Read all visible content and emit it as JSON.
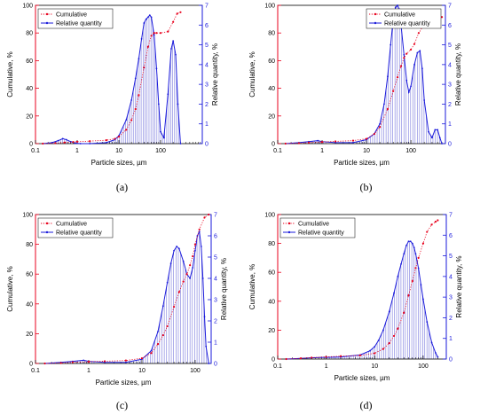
{
  "colors": {
    "cumulative": "#e8001c",
    "relative": "#1a1adb",
    "axis_left": "#e8001c",
    "axis_right": "#1a1adb",
    "bars": "#7777dd"
  },
  "chart_data": [
    {
      "type": "line",
      "caption": "(a)",
      "xlabel": "Particle sizes, µm",
      "ylabel_left": "Cumulative, %",
      "ylabel_right": "Relative quantity, %",
      "x_scale": "log",
      "xlim": [
        0.1,
        1000
      ],
      "x_ticks": [
        "0.1",
        "1",
        "10",
        "100"
      ],
      "ylim_left": [
        0,
        100
      ],
      "y_ticks_left": [
        "0",
        "20",
        "40",
        "60",
        "80",
        "100"
      ],
      "ylim_right": [
        0,
        7
      ],
      "y_ticks_right": [
        "0",
        "1",
        "2",
        "3",
        "4",
        "5",
        "6",
        "7"
      ],
      "legend": {
        "position": "top-left",
        "entries": [
          "Cumulative",
          "Relative quantity"
        ]
      },
      "series": [
        {
          "name": "Cumulative",
          "axis": "left",
          "x": [
            0.15,
            0.3,
            0.5,
            0.8,
            1,
            2,
            5,
            8,
            10,
            15,
            20,
            25,
            30,
            40,
            50,
            60,
            70,
            80,
            100,
            150,
            200,
            250,
            300
          ],
          "y": [
            0,
            0.3,
            0.8,
            1.2,
            1.4,
            1.8,
            2.5,
            3.5,
            5,
            10,
            17,
            25,
            35,
            55,
            70,
            78,
            80,
            80,
            80,
            81,
            88,
            94,
            95
          ]
        },
        {
          "name": "Relative quantity",
          "axis": "right",
          "x": [
            0.15,
            0.25,
            0.35,
            0.45,
            0.55,
            0.7,
            0.9,
            1.2,
            2,
            5,
            8,
            10,
            15,
            20,
            25,
            30,
            35,
            40,
            45,
            50,
            55,
            60,
            70,
            80,
            90,
            100,
            120,
            150,
            180,
            200,
            230,
            260,
            300
          ],
          "y": [
            0,
            0.05,
            0.15,
            0.25,
            0.2,
            0.1,
            0.02,
            0,
            0,
            0.05,
            0.2,
            0.4,
            1.2,
            2.2,
            3.3,
            4.3,
            5.3,
            6.1,
            6.3,
            6.4,
            6.5,
            6.4,
            5.5,
            3.8,
            2.0,
            0.6,
            0.3,
            2.5,
            4.8,
            5.2,
            4.5,
            2.0,
            0
          ]
        }
      ]
    },
    {
      "type": "line",
      "caption": "(b)",
      "xlabel": "Particle sizes, µm",
      "ylabel_left": "Cumulative, %",
      "ylabel_right": "Relative quantity, %",
      "x_scale": "log",
      "xlim": [
        0.1,
        600
      ],
      "x_ticks": [
        "0.1",
        "1",
        "10",
        "100"
      ],
      "ylim_left": [
        0,
        100
      ],
      "y_ticks_left": [
        "0",
        "20",
        "40",
        "60",
        "80",
        "100"
      ],
      "ylim_right": [
        0,
        7
      ],
      "y_ticks_right": [
        "0",
        "1",
        "2",
        "3",
        "4",
        "5",
        "6",
        "7"
      ],
      "legend": {
        "position": "top-right",
        "entries": [
          "Cumulative",
          "Relative quantity"
        ]
      },
      "series": [
        {
          "name": "Cumulative",
          "axis": "left",
          "x": [
            0.15,
            0.3,
            0.5,
            1,
            2,
            5,
            10,
            15,
            20,
            30,
            40,
            50,
            60,
            70,
            80,
            100,
            120,
            150,
            200,
            300,
            400,
            500
          ],
          "y": [
            0,
            0.3,
            0.7,
            1.2,
            1.6,
            2.2,
            3.5,
            7,
            12,
            25,
            38,
            48,
            56,
            62,
            65,
            68,
            72,
            80,
            86,
            90,
            91,
            91.5
          ]
        },
        {
          "name": "Relative quantity",
          "axis": "right",
          "x": [
            0.15,
            0.3,
            0.5,
            0.8,
            1,
            2,
            5,
            10,
            15,
            20,
            25,
            30,
            35,
            40,
            45,
            50,
            55,
            60,
            70,
            80,
            90,
            100,
            120,
            140,
            160,
            180,
            200,
            250,
            300,
            350,
            400,
            450,
            500
          ],
          "y": [
            0,
            0.05,
            0.1,
            0.15,
            0.1,
            0.05,
            0.05,
            0.2,
            0.5,
            1.0,
            2.0,
            3.4,
            5.0,
            6.3,
            6.9,
            7.0,
            6.8,
            6.0,
            4.5,
            3.2,
            2.6,
            2.9,
            4.0,
            4.6,
            4.7,
            3.8,
            2.2,
            0.6,
            0.3,
            0.7,
            0.7,
            0.3,
            0
          ]
        }
      ]
    },
    {
      "type": "line",
      "caption": "(c)",
      "xlabel": "Particle sizes, µm",
      "ylabel_left": "Cumulative, %",
      "ylabel_right": "Relative quantity, %",
      "x_scale": "log",
      "xlim": [
        0.1,
        200
      ],
      "x_ticks": [
        "0.1",
        "1",
        "10",
        "100"
      ],
      "ylim_left": [
        0,
        100
      ],
      "y_ticks_left": [
        "0",
        "20",
        "40",
        "60",
        "80",
        "100"
      ],
      "ylim_right": [
        0,
        7
      ],
      "y_ticks_right": [
        "0",
        "1",
        "2",
        "3",
        "4",
        "5",
        "6",
        "7"
      ],
      "legend": {
        "position": "top-left",
        "entries": [
          "Cumulative",
          "Relative quantity"
        ]
      },
      "series": [
        {
          "name": "Cumulative",
          "axis": "left",
          "x": [
            0.15,
            0.3,
            0.5,
            1,
            2,
            5,
            10,
            15,
            20,
            25,
            30,
            40,
            50,
            60,
            70,
            80,
            90,
            100,
            120,
            150,
            180
          ],
          "y": [
            0,
            0.3,
            0.8,
            1.2,
            1.5,
            2.0,
            3.5,
            7,
            13,
            19,
            25,
            38,
            48,
            55,
            60,
            66,
            72,
            80,
            90,
            98,
            100
          ]
        },
        {
          "name": "Relative quantity",
          "axis": "right",
          "x": [
            0.15,
            0.3,
            0.5,
            0.8,
            1,
            2,
            5,
            10,
            15,
            20,
            25,
            30,
            35,
            40,
            45,
            50,
            60,
            70,
            80,
            90,
            100,
            110,
            120,
            130,
            140,
            150,
            160,
            180
          ],
          "y": [
            0,
            0.05,
            0.1,
            0.15,
            0.1,
            0.05,
            0.05,
            0.2,
            0.6,
            1.5,
            2.7,
            3.8,
            4.7,
            5.3,
            5.5,
            5.4,
            4.8,
            4.2,
            4.0,
            4.5,
            5.3,
            6.0,
            6.2,
            5.5,
            4.0,
            2.2,
            0.8,
            0
          ]
        }
      ]
    },
    {
      "type": "line",
      "caption": "(d)",
      "xlabel": "Particle sizes, µm",
      "ylabel_left": "Cumulative, %",
      "ylabel_right": "Relative quantity, %",
      "x_scale": "log",
      "xlim": [
        0.1,
        300
      ],
      "x_ticks": [
        "0.1",
        "1",
        "10",
        "100"
      ],
      "ylim_left": [
        0,
        100
      ],
      "y_ticks_left": [
        "0",
        "20",
        "40",
        "60",
        "80",
        "100"
      ],
      "ylim_right": [
        0,
        7
      ],
      "y_ticks_right": [
        "0",
        "1",
        "2",
        "3",
        "4",
        "5",
        "6",
        "7"
      ],
      "legend": {
        "position": "top-left",
        "entries": [
          "Cumulative",
          "Relative quantity"
        ]
      },
      "series": [
        {
          "name": "Cumulative",
          "axis": "left",
          "x": [
            0.15,
            0.3,
            0.5,
            1,
            2,
            5,
            10,
            15,
            20,
            25,
            30,
            40,
            50,
            60,
            70,
            80,
            100,
            120,
            150,
            180,
            200
          ],
          "y": [
            0,
            0.5,
            1,
            1.5,
            2,
            2.5,
            4,
            7,
            11,
            16,
            21,
            32,
            44,
            54,
            63,
            70,
            80,
            88,
            93,
            95,
            96
          ]
        },
        {
          "name": "Relative quantity",
          "axis": "right",
          "x": [
            0.15,
            0.3,
            0.5,
            0.8,
            1,
            2,
            5,
            8,
            10,
            12,
            15,
            20,
            25,
            30,
            35,
            40,
            45,
            50,
            55,
            60,
            65,
            70,
            80,
            90,
            100,
            120,
            150,
            180,
            200
          ],
          "y": [
            0,
            0.03,
            0.06,
            0.08,
            0.08,
            0.1,
            0.2,
            0.4,
            0.6,
            0.9,
            1.4,
            2.3,
            3.2,
            4.0,
            4.6,
            5.1,
            5.5,
            5.7,
            5.7,
            5.6,
            5.4,
            5.1,
            4.4,
            3.6,
            2.9,
            1.8,
            0.8,
            0.3,
            0.1
          ]
        }
      ]
    }
  ]
}
